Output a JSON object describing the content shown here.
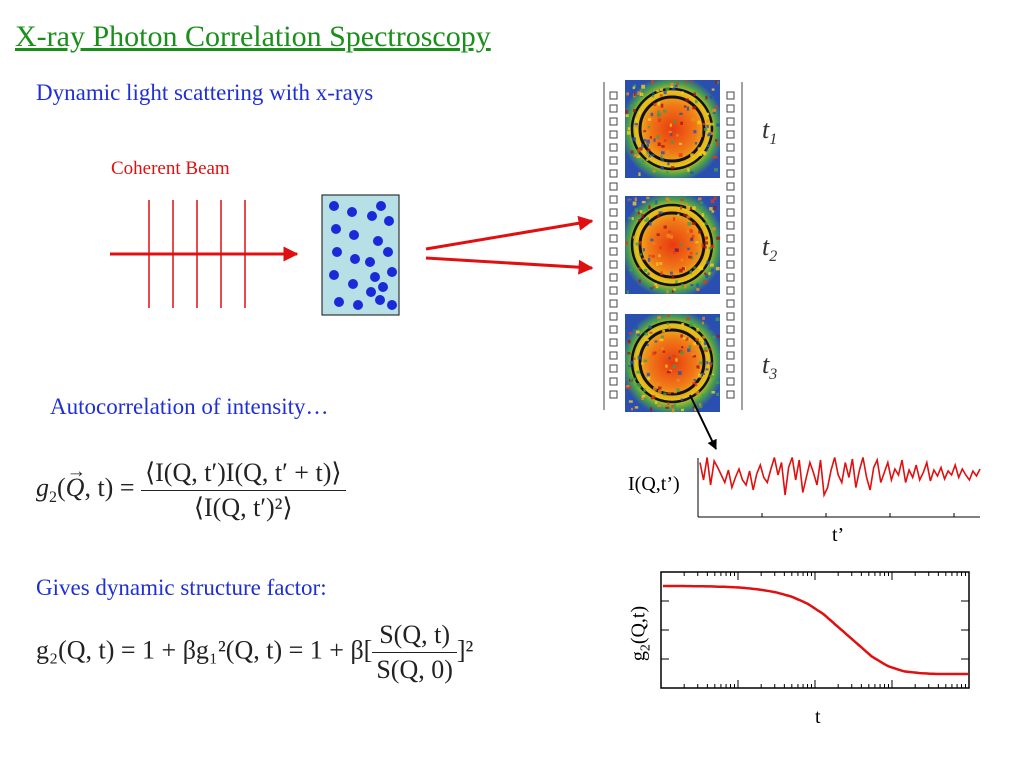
{
  "title": "X-ray Photon Correlation Spectroscopy",
  "subtitle": "Dynamic light scattering with x-rays",
  "beam_label": "Coherent Beam",
  "frames": [
    {
      "label": "t",
      "sub": "1"
    },
    {
      "label": "t",
      "sub": "2"
    },
    {
      "label": "t",
      "sub": "3"
    }
  ],
  "autocorr_text": "Autocorrelation of intensity…",
  "dsf_text": "Gives dynamic structure factor:",
  "equation1": {
    "lhs_g": "g",
    "lhs_sub": "2",
    "lhs_args": "Q",
    "lhs_t": ", t) =",
    "num": "⟨I(Q, t′)I(Q, t′ + t)⟩",
    "den": "⟨I(Q, t′)²⟩"
  },
  "equation2": {
    "text_a": "g₂(Q, t) = 1 + βg₁²(Q, t) = 1 + β[",
    "num": "S(Q, t)",
    "den": "S(Q, 0)",
    "close": "]²"
  },
  "intensity_plot": {
    "ylabel": "I(Q,t’)",
    "xlabel": "t’"
  },
  "g2_plot": {
    "ylabel_main": "g",
    "ylabel_sub": "2",
    "ylabel_rest": "(Q,t)",
    "xlabel": "t"
  },
  "colors": {
    "title": "#1a8f1a",
    "text_blue": "#1f2fd6",
    "beam_red": "#e01010",
    "sample_fill": "#b6e0e6",
    "particle": "#1a2ad8"
  },
  "chart_data": [
    {
      "type": "line",
      "title": "",
      "xlabel": "t’",
      "ylabel": "I(Q,t’)",
      "x": [
        0,
        1,
        2,
        3,
        4,
        5,
        6,
        7,
        8,
        9,
        10,
        11,
        12,
        13,
        14,
        15,
        16,
        17,
        18,
        19,
        20,
        21,
        22,
        23,
        24,
        25,
        26,
        27,
        28,
        29,
        30,
        31,
        32,
        33,
        34,
        35,
        36,
        37,
        38,
        39,
        40,
        41,
        42,
        43,
        44,
        45,
        46,
        47,
        48,
        49,
        50,
        51,
        52,
        53,
        54,
        55,
        56,
        57,
        58,
        59,
        60,
        61,
        62,
        63,
        64,
        65,
        66,
        67,
        68,
        69,
        70,
        71,
        72,
        73,
        74,
        75,
        76,
        77,
        78,
        79
      ],
      "series": [
        {
          "values": [
            0.85,
            0.5,
            0.95,
            0.4,
            0.88,
            0.75,
            0.6,
            0.45,
            0.7,
            0.35,
            0.55,
            0.72,
            0.5,
            0.4,
            0.68,
            0.3,
            0.62,
            0.8,
            0.55,
            0.45,
            0.72,
            0.95,
            0.6,
            0.85,
            0.2,
            0.75,
            0.95,
            0.5,
            0.9,
            0.25,
            0.55,
            0.85,
            0.65,
            0.4,
            0.9,
            0.2,
            0.35,
            0.7,
            0.95,
            0.6,
            0.45,
            0.85,
            0.55,
            0.92,
            0.35,
            0.7,
            0.95,
            0.55,
            0.3,
            0.75,
            0.9,
            0.45,
            0.65,
            0.85,
            0.5,
            0.72,
            0.6,
            0.9,
            0.45,
            0.7,
            0.55,
            0.8,
            0.5,
            0.65,
            0.85,
            0.48,
            0.7,
            0.58,
            0.75,
            0.52,
            0.68,
            0.6,
            0.8,
            0.55,
            0.72,
            0.6,
            0.5,
            0.68,
            0.58,
            0.72
          ]
        }
      ]
    },
    {
      "type": "line",
      "title": "",
      "xlabel": "t",
      "ylabel": "g2(Q,t)",
      "x_scale": "log",
      "series": [
        {
          "values": [
            1.0,
            1.0,
            0.998,
            0.995,
            0.99,
            0.98,
            0.96,
            0.93,
            0.88,
            0.8,
            0.68,
            0.52,
            0.36,
            0.2,
            0.09,
            0.03,
            0.01,
            0.0,
            0.0,
            0.0
          ]
        }
      ]
    }
  ]
}
